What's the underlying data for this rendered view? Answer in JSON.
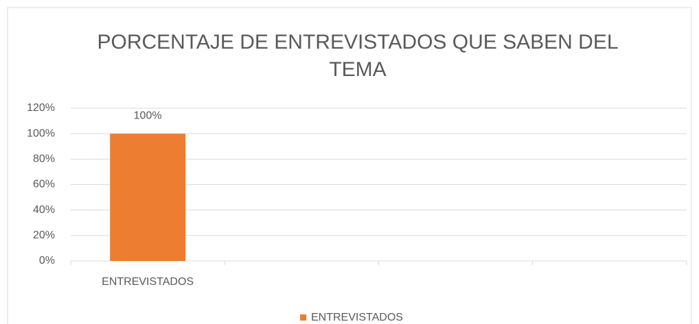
{
  "chart_data": {
    "type": "bar",
    "title": "PORCENTAJE DE ENTREVISTADOS QUE SABEN DEL TEMA",
    "categories": [
      "ENTREVISTADOS",
      null,
      null,
      null
    ],
    "series": [
      {
        "name": "ENTREVISTADOS",
        "color": "#ed7d31",
        "values": [
          100,
          null,
          null,
          null
        ],
        "value_labels": [
          "100%",
          null,
          null,
          null
        ]
      }
    ],
    "ylim": [
      0,
      120
    ],
    "yticks": [
      {
        "value": 0,
        "label": "0%"
      },
      {
        "value": 20,
        "label": "20%"
      },
      {
        "value": 40,
        "label": "40%"
      },
      {
        "value": 60,
        "label": "60%"
      },
      {
        "value": 80,
        "label": "80%"
      },
      {
        "value": 100,
        "label": "100%"
      },
      {
        "value": 120,
        "label": "120%"
      }
    ],
    "grid": true,
    "legend": "bottom"
  }
}
